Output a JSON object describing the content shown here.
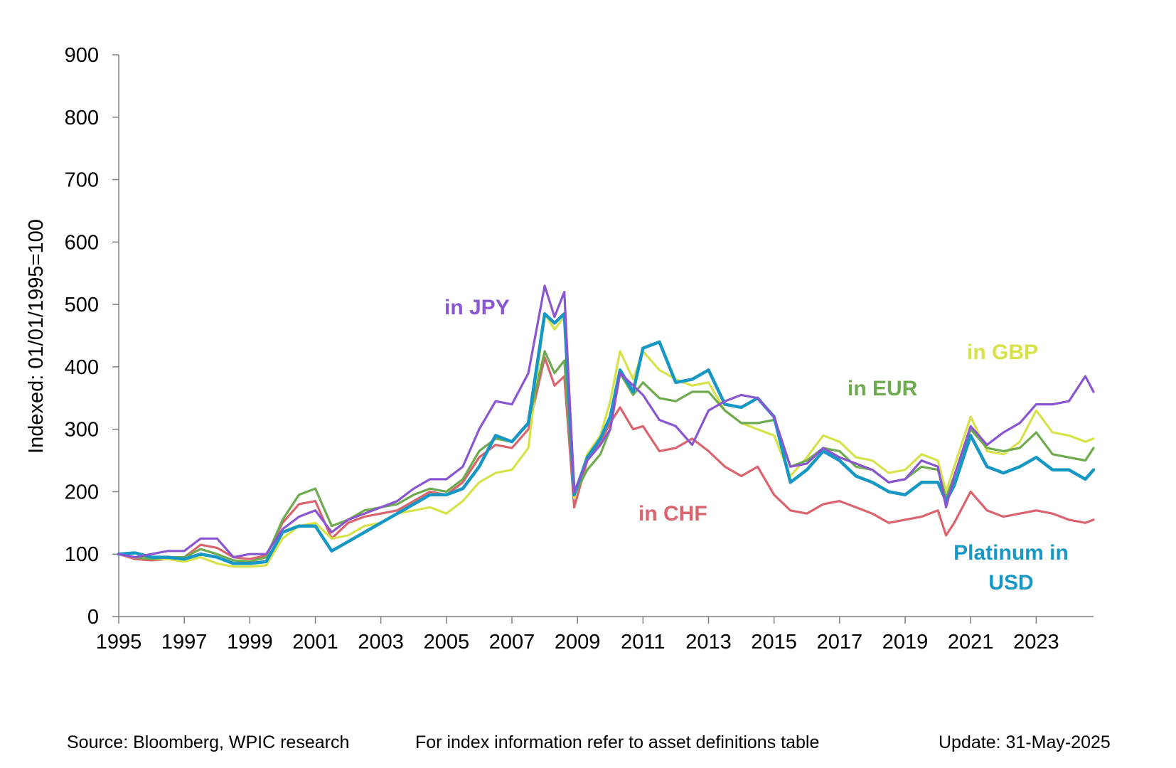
{
  "chart_data": {
    "type": "line",
    "ylabel": "Indexed: 01/01/1995=100",
    "xlabel": "",
    "ylim": [
      0,
      900
    ],
    "yticks": [
      0,
      100,
      200,
      300,
      400,
      500,
      600,
      700,
      800,
      900
    ],
    "xlim": [
      1995,
      2024.75
    ],
    "xticks": [
      1995,
      1997,
      1999,
      2001,
      2003,
      2005,
      2007,
      2009,
      2011,
      2013,
      2015,
      2017,
      2019,
      2021,
      2023
    ],
    "grid": false,
    "legend": "inline labels",
    "series": [
      {
        "name": "in CHF",
        "color": "#D9646E",
        "x": [
          1995,
          1995.5,
          1996,
          1996.5,
          1997,
          1997.5,
          1998,
          1998.5,
          1999,
          1999.5,
          2000,
          2000.5,
          2001,
          2001.5,
          2002,
          2002.5,
          2003,
          2003.5,
          2004,
          2004.5,
          2005,
          2005.5,
          2006,
          2006.5,
          2007,
          2007.5,
          2008,
          2008.3,
          2008.6,
          2008.9,
          2009.3,
          2009.7,
          2010,
          2010.3,
          2010.7,
          2011,
          2011.5,
          2012,
          2012.5,
          2013,
          2013.5,
          2014,
          2014.5,
          2015,
          2015.5,
          2016,
          2016.5,
          2017,
          2017.5,
          2018,
          2018.5,
          2019,
          2019.5,
          2020,
          2020.25,
          2020.5,
          2021,
          2021.5,
          2022,
          2022.5,
          2023,
          2023.5,
          2024,
          2024.5,
          2024.75
        ],
        "y": [
          100,
          92,
          90,
          92,
          95,
          115,
          110,
          95,
          92,
          98,
          150,
          180,
          185,
          125,
          150,
          160,
          165,
          170,
          185,
          200,
          195,
          215,
          255,
          275,
          270,
          300,
          415,
          370,
          385,
          175,
          250,
          280,
          310,
          335,
          300,
          305,
          265,
          270,
          285,
          265,
          240,
          225,
          240,
          195,
          170,
          165,
          180,
          185,
          175,
          165,
          150,
          155,
          160,
          170,
          130,
          150,
          200,
          170,
          160,
          165,
          170,
          165,
          155,
          150,
          155
        ]
      },
      {
        "name": "in GBP",
        "color": "#D7E24A",
        "x": [
          1995,
          1995.5,
          1996,
          1996.5,
          1997,
          1997.5,
          1998,
          1998.5,
          1999,
          1999.5,
          2000,
          2000.5,
          2001,
          2001.5,
          2002,
          2002.5,
          2003,
          2003.5,
          2004,
          2004.5,
          2005,
          2005.5,
          2006,
          2006.5,
          2007,
          2007.5,
          2008,
          2008.3,
          2008.6,
          2008.9,
          2009.3,
          2009.7,
          2010,
          2010.3,
          2010.7,
          2011,
          2011.5,
          2012,
          2012.5,
          2013,
          2013.5,
          2014,
          2014.5,
          2015,
          2015.5,
          2016,
          2016.5,
          2017,
          2017.5,
          2018,
          2018.5,
          2019,
          2019.5,
          2020,
          2020.25,
          2020.5,
          2021,
          2021.5,
          2022,
          2022.5,
          2023,
          2023.5,
          2024,
          2024.5,
          2024.75
        ],
        "y": [
          100,
          95,
          92,
          92,
          88,
          95,
          85,
          80,
          80,
          82,
          125,
          145,
          150,
          125,
          130,
          145,
          150,
          165,
          170,
          175,
          165,
          185,
          215,
          230,
          235,
          270,
          485,
          460,
          480,
          190,
          260,
          290,
          345,
          425,
          380,
          425,
          395,
          380,
          370,
          375,
          330,
          310,
          300,
          290,
          225,
          255,
          290,
          280,
          255,
          250,
          230,
          235,
          260,
          250,
          200,
          240,
          320,
          265,
          260,
          280,
          330,
          295,
          290,
          280,
          285
        ]
      },
      {
        "name": "in EUR",
        "color": "#6EAA4E",
        "x": [
          1995,
          1995.5,
          1996,
          1996.5,
          1997,
          1997.5,
          1998,
          1998.5,
          1999,
          1999.5,
          2000,
          2000.5,
          2001,
          2001.5,
          2002,
          2002.5,
          2003,
          2003.5,
          2004,
          2004.5,
          2005,
          2005.5,
          2006,
          2006.5,
          2007,
          2007.5,
          2008,
          2008.3,
          2008.6,
          2008.9,
          2009.3,
          2009.7,
          2010,
          2010.3,
          2010.7,
          2011,
          2011.5,
          2012,
          2012.5,
          2013,
          2013.5,
          2014,
          2014.5,
          2015,
          2015.5,
          2016,
          2016.5,
          2017,
          2017.5,
          2018,
          2018.5,
          2019,
          2019.5,
          2020,
          2020.25,
          2020.5,
          2021,
          2021.5,
          2022,
          2022.5,
          2023,
          2023.5,
          2024,
          2024.5,
          2024.75
        ],
        "y": [
          100,
          95,
          92,
          95,
          95,
          108,
          100,
          90,
          88,
          95,
          155,
          195,
          205,
          145,
          155,
          170,
          175,
          180,
          195,
          205,
          200,
          220,
          265,
          285,
          280,
          310,
          425,
          390,
          410,
          195,
          235,
          260,
          300,
          390,
          355,
          375,
          350,
          345,
          360,
          360,
          330,
          310,
          310,
          315,
          240,
          250,
          270,
          265,
          240,
          235,
          215,
          220,
          240,
          235,
          190,
          225,
          300,
          270,
          265,
          270,
          295,
          260,
          255,
          250,
          270
        ]
      },
      {
        "name": "Platinum in USD",
        "color": "#1797C4",
        "x": [
          1995,
          1995.5,
          1996,
          1996.5,
          1997,
          1997.5,
          1998,
          1998.5,
          1999,
          1999.5,
          2000,
          2000.5,
          2001,
          2001.5,
          2002,
          2002.5,
          2003,
          2003.5,
          2004,
          2004.5,
          2005,
          2005.5,
          2006,
          2006.5,
          2007,
          2007.5,
          2008,
          2008.3,
          2008.6,
          2008.9,
          2009.3,
          2009.7,
          2010,
          2010.3,
          2010.7,
          2011,
          2011.5,
          2012,
          2012.5,
          2013,
          2013.5,
          2014,
          2014.5,
          2015,
          2015.5,
          2016,
          2016.5,
          2017,
          2017.5,
          2018,
          2018.5,
          2019,
          2019.5,
          2020,
          2020.25,
          2020.5,
          2021,
          2021.5,
          2022,
          2022.5,
          2023,
          2023.5,
          2024,
          2024.5,
          2024.75
        ],
        "y": [
          100,
          102,
          95,
          95,
          92,
          100,
          95,
          85,
          85,
          88,
          135,
          145,
          145,
          105,
          120,
          135,
          150,
          165,
          180,
          195,
          195,
          205,
          240,
          290,
          280,
          310,
          485,
          470,
          485,
          195,
          255,
          285,
          320,
          395,
          360,
          430,
          440,
          375,
          380,
          395,
          340,
          335,
          350,
          320,
          215,
          235,
          265,
          250,
          225,
          215,
          200,
          195,
          215,
          215,
          185,
          210,
          290,
          240,
          230,
          240,
          255,
          235,
          235,
          220,
          235
        ]
      },
      {
        "name": "in JPY",
        "color": "#8A55D0",
        "x": [
          1995,
          1995.5,
          1996,
          1996.5,
          1997,
          1997.5,
          1998,
          1998.5,
          1999,
          1999.5,
          2000,
          2000.5,
          2001,
          2001.5,
          2002,
          2002.5,
          2003,
          2003.5,
          2004,
          2004.5,
          2005,
          2005.5,
          2006,
          2006.5,
          2007,
          2007.5,
          2008,
          2008.3,
          2008.6,
          2008.9,
          2009.3,
          2009.7,
          2010,
          2010.3,
          2010.7,
          2011,
          2011.5,
          2012,
          2012.5,
          2013,
          2013.5,
          2014,
          2014.5,
          2015,
          2015.5,
          2016,
          2016.5,
          2017,
          2017.5,
          2018,
          2018.5,
          2019,
          2019.5,
          2020,
          2020.25,
          2020.5,
          2021,
          2021.5,
          2022,
          2022.5,
          2023,
          2023.5,
          2024,
          2024.5,
          2024.75
        ],
        "y": [
          100,
          95,
          100,
          105,
          105,
          125,
          125,
          95,
          100,
          100,
          140,
          160,
          170,
          135,
          155,
          165,
          175,
          185,
          205,
          220,
          220,
          240,
          300,
          345,
          340,
          390,
          530,
          480,
          520,
          200,
          250,
          275,
          300,
          390,
          370,
          355,
          315,
          305,
          275,
          330,
          345,
          355,
          350,
          320,
          240,
          245,
          270,
          255,
          245,
          235,
          215,
          220,
          250,
          240,
          175,
          225,
          305,
          275,
          295,
          310,
          340,
          340,
          345,
          385,
          360
        ]
      }
    ],
    "annotations": [
      {
        "text": "in JPY",
        "series": "in JPY"
      },
      {
        "text": "in GBP",
        "series": "in GBP"
      },
      {
        "text": "in EUR",
        "series": "in EUR"
      },
      {
        "text": "in CHF",
        "series": "in CHF"
      },
      {
        "text": "Platinum in",
        "series": "Platinum in USD"
      },
      {
        "text": "USD",
        "series": "Platinum in USD"
      }
    ]
  },
  "footer": {
    "source": "Source: Bloomberg, WPIC research",
    "note": "For index information refer to asset definitions table",
    "update": "Update: 31-May-2025"
  }
}
